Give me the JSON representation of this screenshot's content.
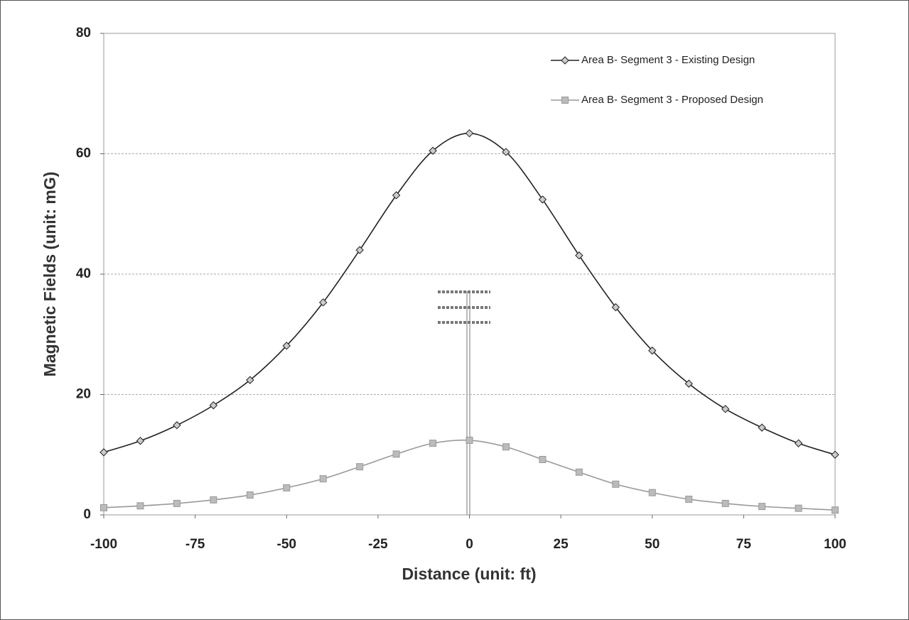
{
  "chart_data": {
    "type": "line",
    "x_label": "Distance (unit: ft)",
    "y_label": "Magnetic Fields (unit: mG)",
    "x": [
      -100,
      -90,
      -80,
      -70,
      -60,
      -50,
      -40,
      -30,
      -20,
      -10,
      0,
      10,
      20,
      30,
      40,
      50,
      60,
      70,
      80,
      90,
      100
    ],
    "series": [
      {
        "name": "Area B- Segment 3 - Existing Design",
        "color": "#222222",
        "marker": "diamond",
        "values": [
          10.4,
          12.3,
          14.9,
          18.2,
          22.4,
          28.1,
          35.3,
          44.0,
          53.1,
          60.5,
          63.4,
          60.3,
          52.4,
          43.1,
          34.5,
          27.3,
          21.8,
          17.6,
          14.5,
          11.9,
          10.0
        ]
      },
      {
        "name": "Area B- Segment 3 - Proposed Design",
        "color": "#999999",
        "marker": "square",
        "values": [
          1.2,
          1.5,
          1.9,
          2.5,
          3.3,
          4.5,
          6.0,
          8.0,
          10.1,
          11.9,
          12.4,
          11.3,
          9.2,
          7.1,
          5.1,
          3.7,
          2.6,
          1.9,
          1.4,
          1.1,
          0.8
        ]
      }
    ],
    "xlim": [
      -100,
      100
    ],
    "xticks": [
      -100,
      -75,
      -50,
      -25,
      0,
      25,
      50,
      75,
      100
    ],
    "ylim": [
      0,
      80
    ],
    "yticks": [
      0,
      20,
      40,
      60,
      80
    ],
    "grid": true,
    "legend": "top-right"
  }
}
